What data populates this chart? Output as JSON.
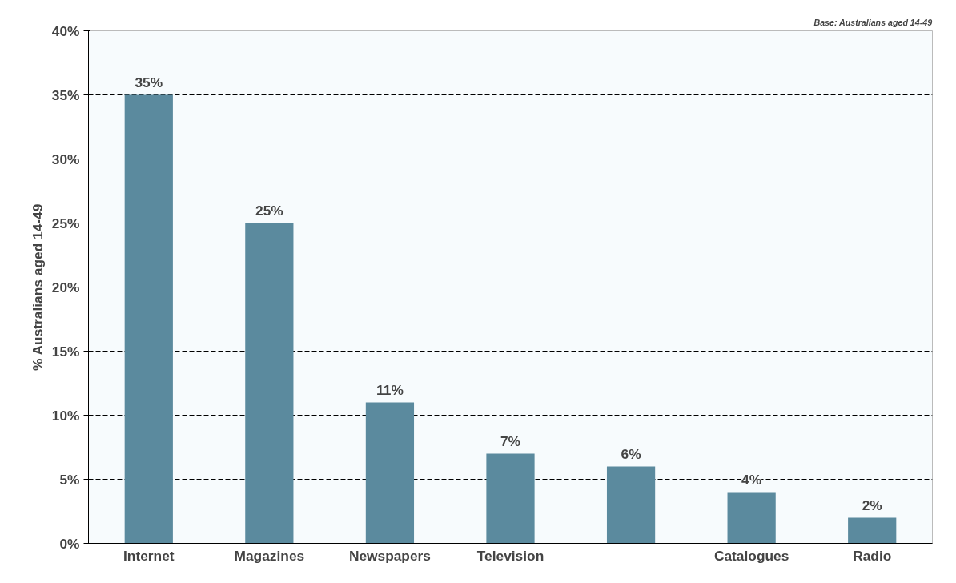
{
  "chart_data": {
    "type": "bar",
    "ylabel": "% Australians aged 14-49",
    "annotations": [
      "Base: Australians aged 14-49"
    ],
    "categories": [
      "Internet",
      "Magazines",
      "Newspapers",
      "Television",
      null,
      "Catalogues",
      "Radio"
    ],
    "values": [
      35,
      25,
      11,
      7,
      6,
      4,
      2
    ],
    "color": "#5b8a9e",
    "ylim": [
      0,
      40
    ],
    "yticks": [
      {
        "value": 0,
        "label": "0%"
      },
      {
        "value": 5,
        "label": "5%"
      },
      {
        "value": 10,
        "label": "10%"
      },
      {
        "value": 15,
        "label": "15%"
      },
      {
        "value": 20,
        "label": "20%"
      },
      {
        "value": 25,
        "label": "25%"
      },
      {
        "value": 30,
        "label": "30%"
      },
      {
        "value": 35,
        "label": "35%"
      },
      {
        "value": 40,
        "label": "40%"
      }
    ],
    "value_labels": [
      "35%",
      "25%",
      "11%",
      "7%",
      "6%",
      "4%",
      "2%"
    ],
    "grid": "y"
  }
}
